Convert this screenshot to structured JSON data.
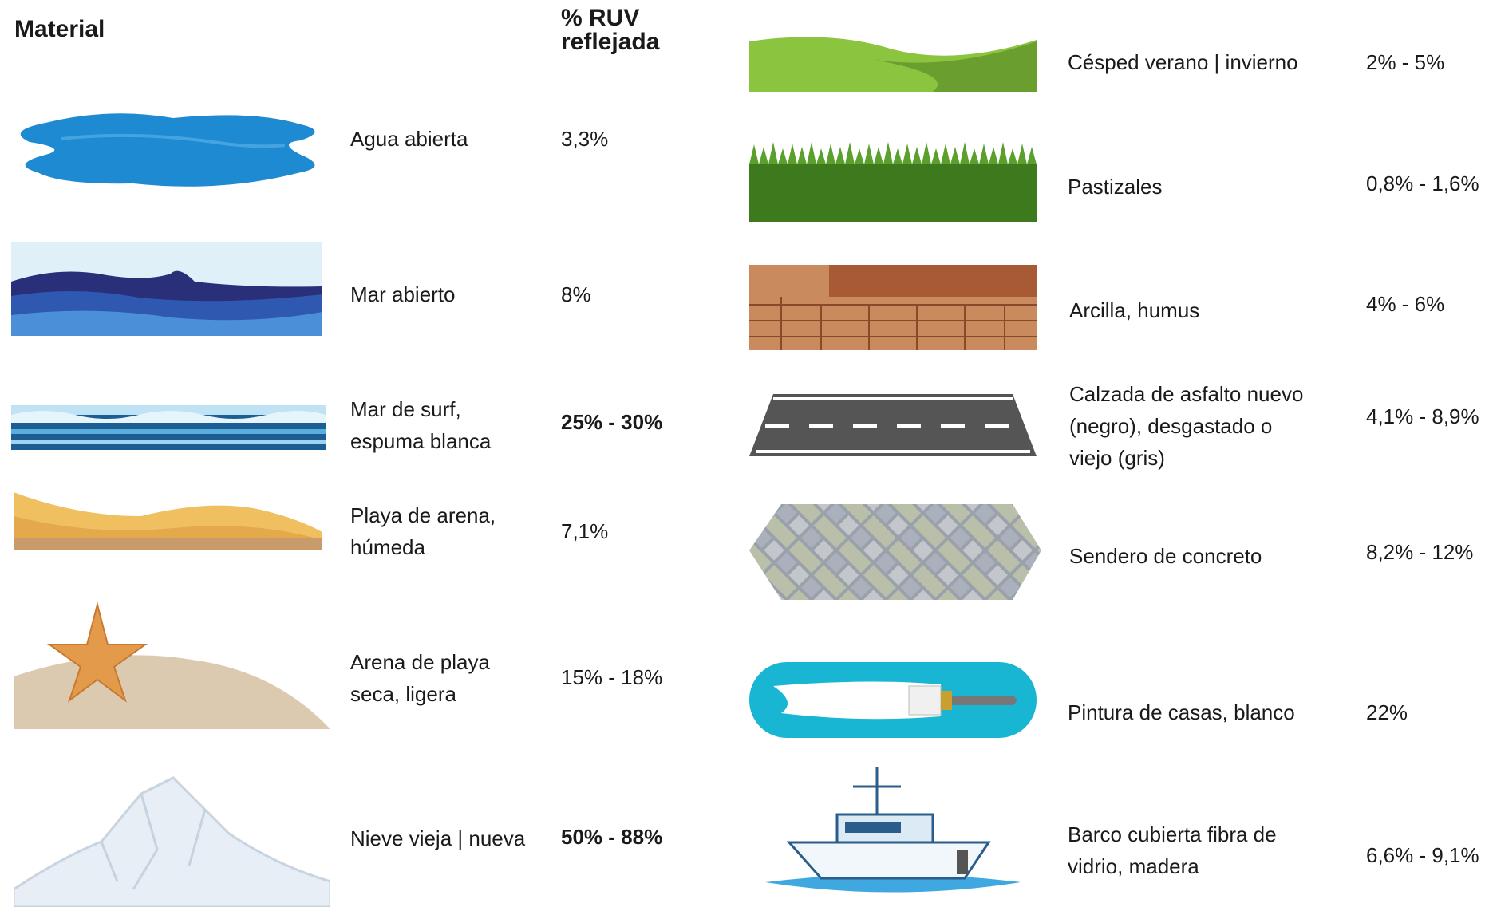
{
  "header": {
    "material": "Material",
    "ruv": [
      "% RUV",
      "reflejada"
    ]
  },
  "left": [
    {
      "label": [
        "Agua abierta"
      ],
      "value": "3,3%",
      "bold": false
    },
    {
      "label": [
        "Mar abierto"
      ],
      "value": "8%",
      "bold": false
    },
    {
      "label": [
        "Mar de surf,",
        "espuma blanca"
      ],
      "value": "25% - 30%",
      "bold": true
    },
    {
      "label": [
        "Playa de arena,",
        "húmeda"
      ],
      "value": "7,1%",
      "bold": false
    },
    {
      "label": [
        "Arena de playa",
        "seca, ligera"
      ],
      "value": "15% - 18%",
      "bold": false
    },
    {
      "label": [
        "Nieve vieja | nueva"
      ],
      "value": "50% - 88%",
      "bold": true
    }
  ],
  "right": [
    {
      "label": [
        "Césped verano | invierno"
      ],
      "value": "2% - 5%",
      "bold": false
    },
    {
      "label": [
        "Pastizales"
      ],
      "value": "0,8% - 1,6%",
      "bold": false
    },
    {
      "label": [
        "Arcilla, humus"
      ],
      "value": "4% - 6%",
      "bold": false
    },
    {
      "label": [
        "Calzada de asfalto nuevo",
        "(negro), desgastado o",
        "viejo (gris)"
      ],
      "value": "4,1% - 8,9%",
      "bold": false
    },
    {
      "label": [
        "Sendero de concreto"
      ],
      "value": "8,2% - 12%",
      "bold": false
    },
    {
      "label": [
        "Pintura de casas, blanco"
      ],
      "value": "22%",
      "bold": false
    },
    {
      "label": [
        "Barco cubierta fibra de",
        "vidrio, madera"
      ],
      "value": "6,6% - 9,1%",
      "bold": false
    }
  ]
}
